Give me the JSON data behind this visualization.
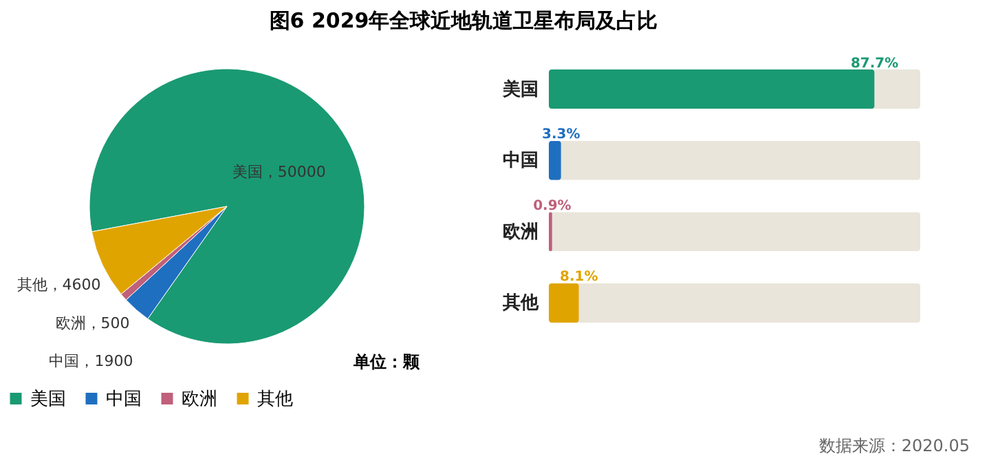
{
  "chart_data": [
    {
      "type": "pie",
      "title": "图6  2029年全球近地轨道卫星布局及占比",
      "categories": [
        "美国",
        "中国",
        "欧洲",
        "其他"
      ],
      "values": [
        50000,
        1900,
        500,
        4600
      ],
      "colors": [
        "#1a9a72",
        "#1f6fc0",
        "#c0607a",
        "#e0a400"
      ],
      "value_labels": [
        "美国，50000",
        "中国，1900",
        "欧洲，500",
        "其他，4600"
      ],
      "legend": "bottom",
      "annotations": [
        "单位：颗"
      ]
    },
    {
      "type": "bar",
      "orientation": "horizontal",
      "categories": [
        "美国",
        "中国",
        "欧洲",
        "其他"
      ],
      "values": [
        87.7,
        3.3,
        0.9,
        8.1
      ],
      "colors": [
        "#1a9a72",
        "#1f6fc0",
        "#c0607a",
        "#e0a400"
      ],
      "value_labels": [
        "87.7%",
        "3.3%",
        "0.9%",
        "8.1%"
      ],
      "xlim": [
        0,
        100
      ],
      "tick_labels": "y",
      "annotations": [
        "数据来源：2020.05"
      ]
    }
  ]
}
